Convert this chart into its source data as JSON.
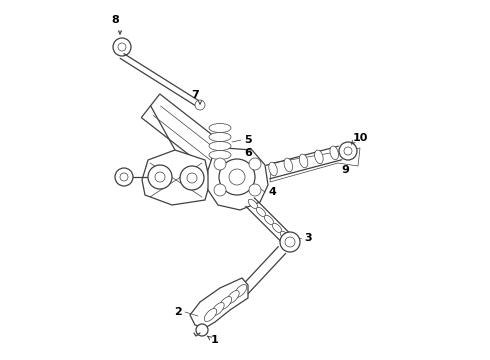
{
  "bg_color": "#ffffff",
  "line_color": "#404040",
  "label_color": "#000000",
  "figsize": [
    4.9,
    3.6
  ],
  "dpi": 100
}
